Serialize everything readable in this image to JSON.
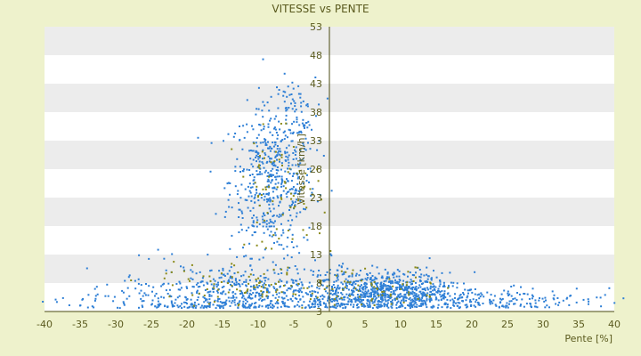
{
  "chart_data": {
    "type": "scatter",
    "title": "VITESSE vs PENTE",
    "xlabel": "Pente [%]",
    "ylabel": "Vitesse [km/h]",
    "xlim": [
      -40,
      40
    ],
    "ylim": [
      3,
      53
    ],
    "x_ticks": [
      "-40",
      "-35",
      "-30",
      "-25",
      "-20",
      "-15",
      "-10",
      "-5",
      "0",
      "5",
      "10",
      "15",
      "20",
      "25",
      "30",
      "35",
      "40"
    ],
    "y_ticks": [
      "3",
      "8",
      "13",
      "18",
      "23",
      "28",
      "33",
      "38",
      "43",
      "48",
      "53"
    ],
    "grid": "horizontal alternating bands",
    "legend": "none",
    "colors": {
      "series_main": "#2e7fd6",
      "series_alt": "#8a8a1a",
      "band_dark": "#ececec",
      "band_light": "#ffffff",
      "axis": "#4a4a10",
      "background": "#eef2cc"
    },
    "series": [
      {
        "color": "#2e7fd6",
        "clusters": [
          {
            "cx": -8,
            "cy": 26,
            "sx": 3,
            "sy": 6.5,
            "n": 520
          },
          {
            "cx": -5,
            "cy": 38,
            "sx": 1.5,
            "sy": 3,
            "n": 60
          },
          {
            "cx": 8,
            "cy": 6.5,
            "sx": 5,
            "sy": 1.8,
            "n": 700
          },
          {
            "cx": -12,
            "cy": 6,
            "sx": 9,
            "sy": 2.5,
            "n": 550
          },
          {
            "cx": 0,
            "cy": 5,
            "sx": 25,
            "sy": 0.8,
            "n": 280
          },
          {
            "cx": 20,
            "cy": 5,
            "sx": 8,
            "sy": 1.5,
            "n": 140
          }
        ]
      },
      {
        "color": "#8a8a1a",
        "clusters": [
          {
            "cx": -7,
            "cy": 24,
            "sx": 3,
            "sy": 5,
            "n": 80
          },
          {
            "cx": -10,
            "cy": 7,
            "sx": 8,
            "sy": 2,
            "n": 90
          },
          {
            "cx": 6,
            "cy": 7,
            "sx": 6,
            "sy": 2,
            "n": 60
          }
        ]
      }
    ]
  }
}
